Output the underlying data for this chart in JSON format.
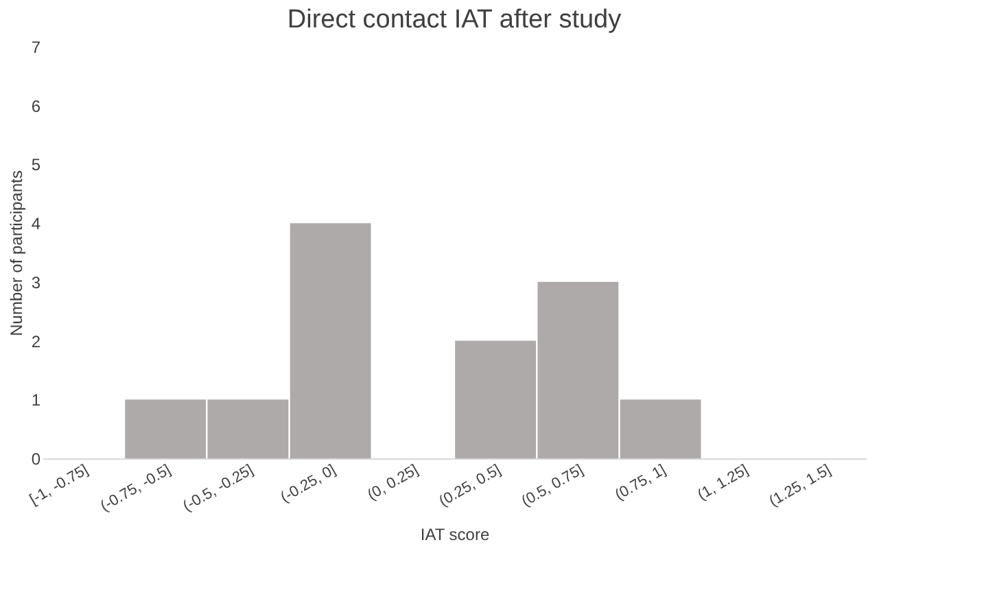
{
  "chart_data": {
    "type": "bar",
    "title": "Direct contact IAT after study",
    "xlabel": "IAT score",
    "ylabel": "Number of participants",
    "categories": [
      "[-1, -0.75]",
      "(-0.75, -0.5]",
      "(-0.5, -0.25]",
      "(-0.25, 0]",
      "(0, 0.25]",
      "(0.25, 0.5]",
      "(0.5, 0.75]",
      "(0.75, 1]",
      "(1, 1.25]",
      "(1.25, 1.5]"
    ],
    "values": [
      0,
      1,
      1,
      4,
      0,
      2,
      3,
      1,
      0,
      0
    ],
    "color": "#aeaaaa",
    "ylim": [
      0,
      7
    ],
    "yticks": [
      0,
      1,
      2,
      3,
      4,
      5,
      6,
      7
    ],
    "grid": false
  }
}
